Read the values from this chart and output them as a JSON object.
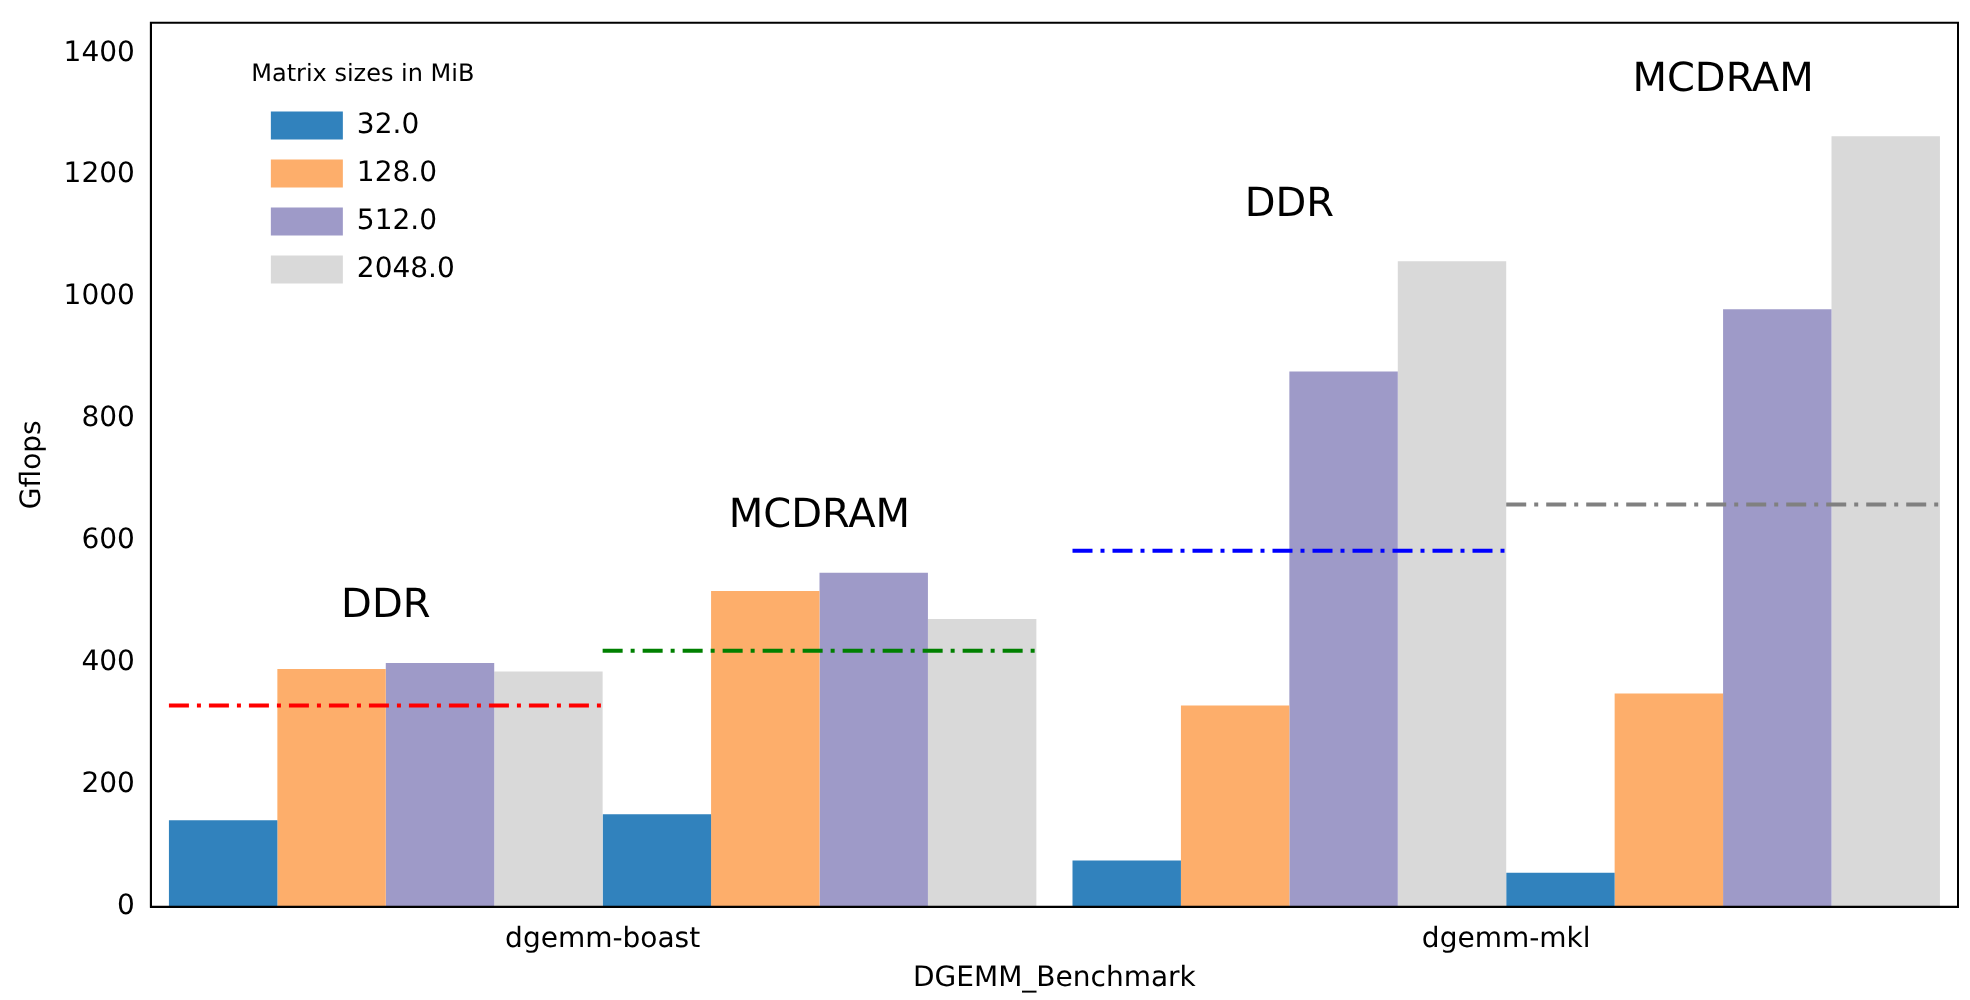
{
  "chart_data": {
    "type": "bar",
    "xlabel": "DGEMM_Benchmark",
    "ylabel": "Gflops",
    "legend_title": "Matrix sizes in MiB",
    "legend": "top left",
    "grid": false,
    "categories": [
      "dgemm-boast",
      "dgemm-mkl"
    ],
    "ylim": [
      0,
      1450
    ],
    "yticks": [
      0,
      200,
      400,
      600,
      800,
      1000,
      1200,
      1400
    ],
    "series": [
      {
        "name": "32.0",
        "color": "#3182bd",
        "values": [
          142,
          76
        ]
      },
      {
        "name": "128.0",
        "color": "#fdae6b",
        "values": [
          390,
          330
        ]
      },
      {
        "name": "512.0",
        "color": "#9e9ac8",
        "values": [
          400,
          878
        ]
      },
      {
        "name": "2048.0",
        "color": "#d9d9d9",
        "values": [
          386,
          1059
        ]
      },
      {
        "color": "#3182bd",
        "values": [
          152,
          56
        ]
      },
      {
        "color": "#fdae6b",
        "values": [
          518,
          350
        ]
      },
      {
        "color": "#9e9ac8",
        "values": [
          548,
          980
        ]
      },
      {
        "color": "#d9d9d9",
        "values": [
          472,
          1264
        ]
      }
    ],
    "ref_lines": [
      {
        "axis": "y",
        "value": 330,
        "color": "#ff0000",
        "line_style": "dashdot"
      },
      {
        "axis": "y",
        "value": 420,
        "color": "#008000",
        "line_style": "dashdot"
      },
      {
        "axis": "y",
        "value": 584,
        "color": "#0000ff",
        "line_style": "dashdot"
      },
      {
        "axis": "y",
        "value": 660,
        "color": "#808080",
        "line_style": "dashdot"
      }
    ],
    "annotations": [
      "DDR",
      "MCDRAM",
      "DDR",
      "MCDRAM"
    ]
  }
}
